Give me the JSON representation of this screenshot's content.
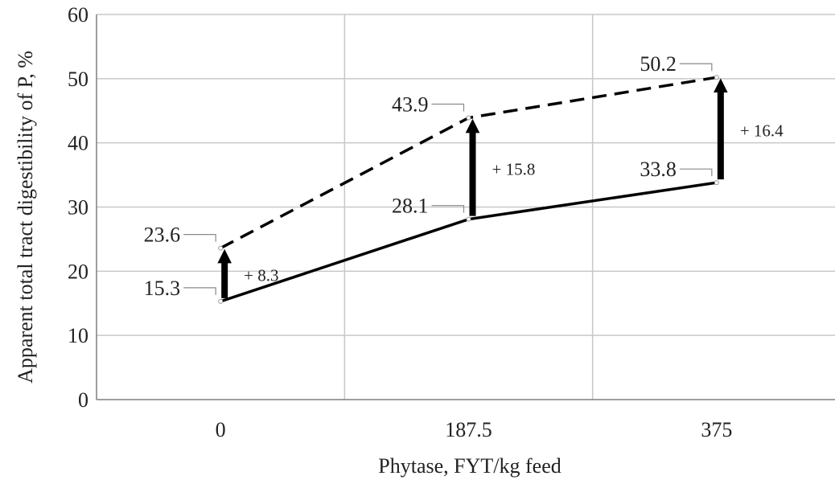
{
  "chart_data": {
    "type": "line",
    "xlabel": "Phytase, FYT/kg feed",
    "ylabel": "Apparent total tract digestibility of P, %",
    "categories": [
      "0",
      "187.5",
      "375"
    ],
    "ylim": [
      0,
      60
    ],
    "yticks": [
      "0",
      "10",
      "20",
      "30",
      "40",
      "50",
      "60"
    ],
    "grid": true,
    "series": [
      {
        "style": "solid",
        "values": [
          15.3,
          28.1,
          33.8
        ],
        "labels": [
          "15.3",
          "28.1",
          "33.8"
        ]
      },
      {
        "style": "dashed",
        "values": [
          23.6,
          43.9,
          50.2
        ],
        "labels": [
          "23.6",
          "43.9",
          "50.2"
        ]
      }
    ],
    "annotations": [
      {
        "x": "0",
        "from": 15.3,
        "to": 23.6,
        "text": "+ 8.3"
      },
      {
        "x": "187.5",
        "from": 28.1,
        "to": 43.9,
        "text": "+ 15.8"
      },
      {
        "x": "375",
        "from": 33.8,
        "to": 50.2,
        "text": "+ 16.4"
      }
    ]
  }
}
